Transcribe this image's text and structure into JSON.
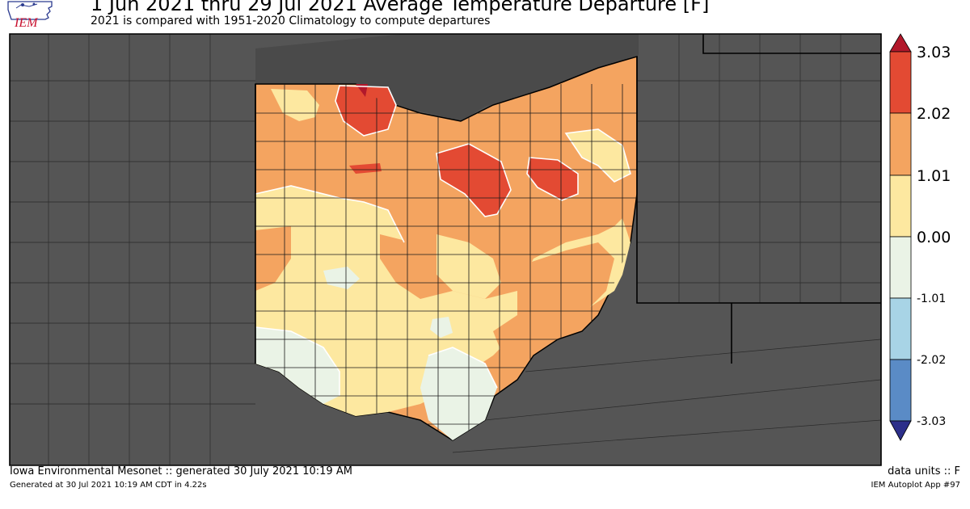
{
  "header": {
    "logo_text": "IEM",
    "title": "1 Jun 2021 thru 29 Jul 2021 Average Temperature Departure [F]",
    "subtitle": "2021 is compared with 1951-2020 Climatology to compute departures"
  },
  "legend": {
    "labels": [
      "3.03",
      "2.02",
      "1.01",
      "0.00",
      "-1.01",
      "-2.02",
      "-3.03"
    ],
    "colors": [
      "#b2182b",
      "#e34a33",
      "#f4a460",
      "#fde8a0",
      "#eaf3e6",
      "#a8d4e6",
      "#5a8bc6",
      "#2c2f8a"
    ],
    "orientation": "vertical",
    "placement": "right"
  },
  "map": {
    "region": "Ohio",
    "background_color": "#555555",
    "county_line_color": "#222222",
    "ocean_color": "#4a4a4a"
  },
  "footer": {
    "left_line1": "Iowa Environmental Mesonet :: generated 30 July 2021 10:19 AM",
    "left_line2": "Generated at 30 Jul 2021 10:19 AM CDT in 4.22s",
    "right_line1": "data units :: F",
    "right_line2": "IEM Autoplot App #97"
  }
}
